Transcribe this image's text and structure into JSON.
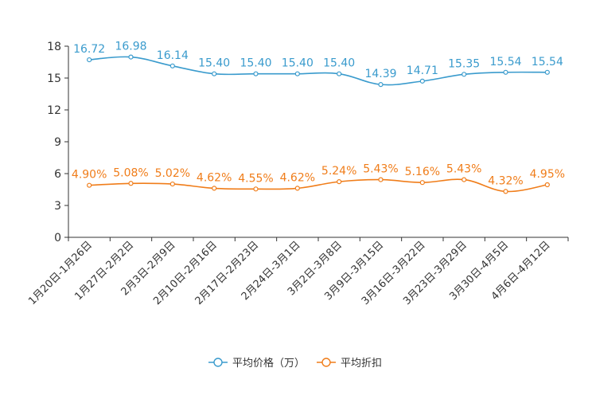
{
  "chart_data": {
    "type": "line",
    "title": "",
    "xlabel": "",
    "ylabel": "",
    "ylim": [
      0,
      18
    ],
    "yticks": [
      0,
      3,
      6,
      9,
      12,
      15,
      18
    ],
    "grid": false,
    "legend_position": "bottom-center",
    "categories": [
      "1月20日-1月26日",
      "1月27日-2月2日",
      "2月3日-2月9日",
      "2月10日-2月16日",
      "2月17日-2月23日",
      "2月24日-3月1日",
      "3月2日-3月8日",
      "3月9日-3月15日",
      "3月16日-3月22日",
      "3月23日-3月29日",
      "3月30日-4月5日",
      "4月6日-4月12日"
    ],
    "series": [
      {
        "name": "平均价格（万）",
        "color": "#3a9bcd",
        "values": [
          16.72,
          16.98,
          16.14,
          15.4,
          15.4,
          15.4,
          15.4,
          14.39,
          14.71,
          15.35,
          15.54,
          15.54
        ],
        "labels": [
          "16.72",
          "16.98",
          "16.14",
          "15.40",
          "15.40",
          "15.40",
          "15.40",
          "14.39",
          "14.71",
          "15.35",
          "15.54",
          "15.54"
        ]
      },
      {
        "name": "平均折扣",
        "color": "#f07d1a",
        "values": [
          4.9,
          5.08,
          5.02,
          4.62,
          4.55,
          4.62,
          5.24,
          5.43,
          5.16,
          5.43,
          4.32,
          4.95
        ],
        "labels": [
          "4.90%",
          "5.08%",
          "5.02%",
          "4.62%",
          "4.55%",
          "4.62%",
          "5.24%",
          "5.43%",
          "5.16%",
          "5.43%",
          "4.32%",
          "4.95%"
        ]
      }
    ]
  }
}
